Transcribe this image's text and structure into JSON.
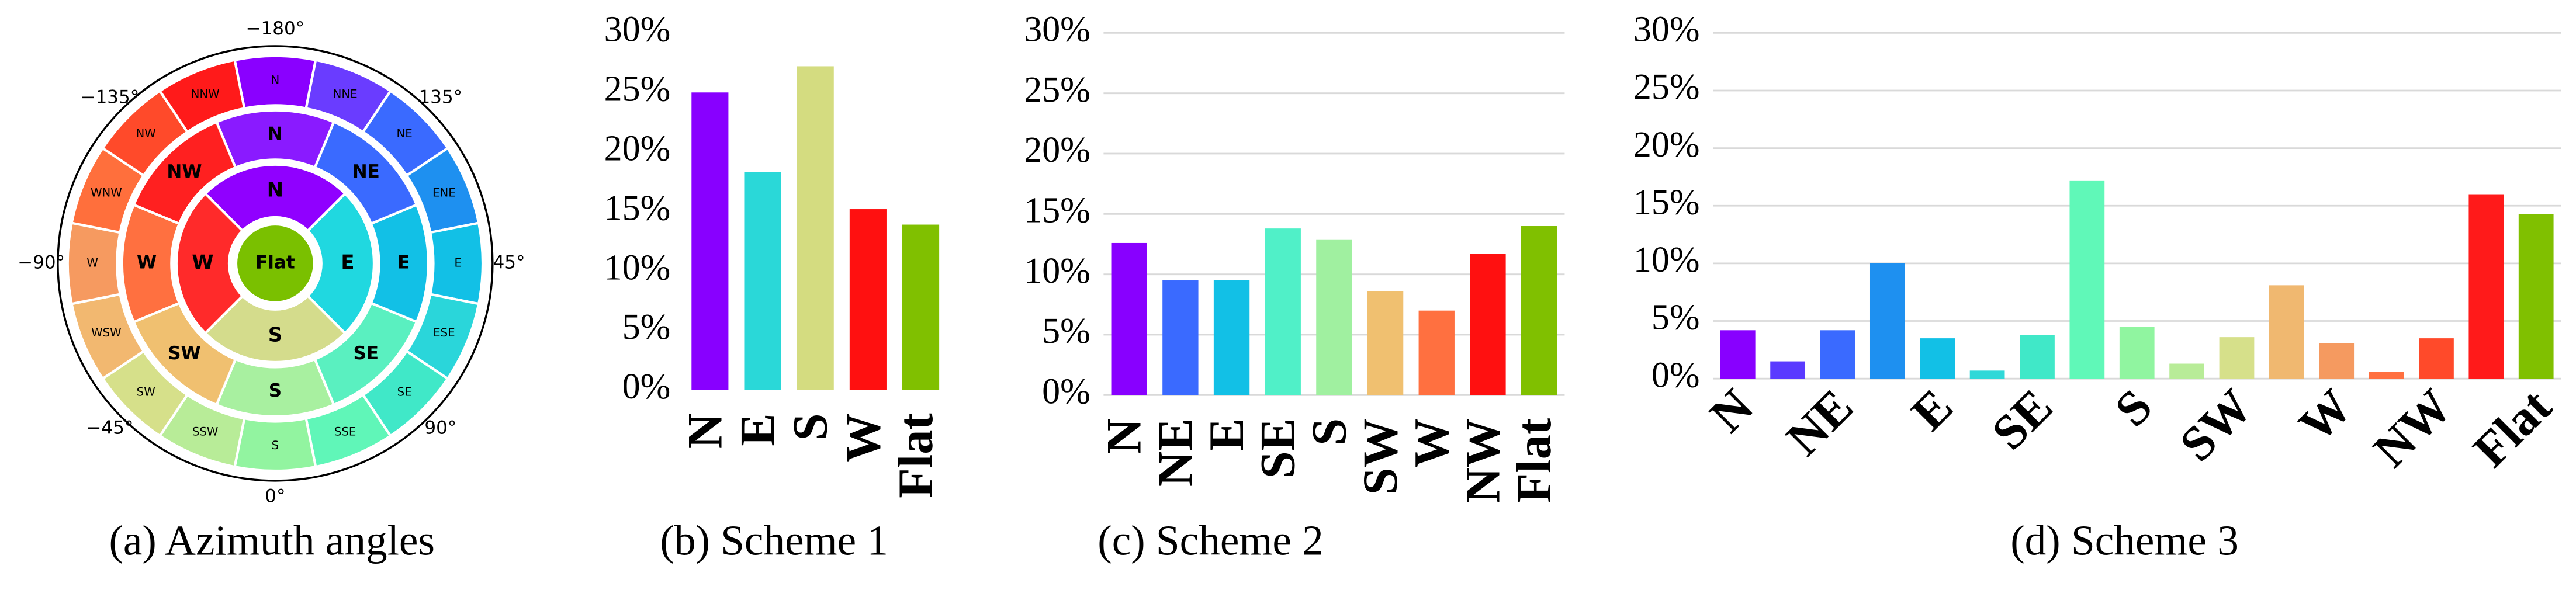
{
  "diagram": {
    "outer": [
      {
        "label": "N",
        "color": "#8a00ff"
      },
      {
        "label": "NNE",
        "color": "#6a3cff"
      },
      {
        "label": "NE",
        "color": "#3a6aff"
      },
      {
        "label": "ENE",
        "color": "#1e90f0"
      },
      {
        "label": "E",
        "color": "#12c0e6"
      },
      {
        "label": "ESE",
        "color": "#2ad6da"
      },
      {
        "label": "SE",
        "color": "#40e8c8"
      },
      {
        "label": "SSE",
        "color": "#60f6b8"
      },
      {
        "label": "S",
        "color": "#92f4a0"
      },
      {
        "label": "SSW",
        "color": "#b8ec98"
      },
      {
        "label": "SW",
        "color": "#d6e08a"
      },
      {
        "label": "WSW",
        "color": "#f2b870"
      },
      {
        "label": "W",
        "color": "#f69a60"
      },
      {
        "label": "WNW",
        "color": "#ff6f3c"
      },
      {
        "label": "NW",
        "color": "#ff4a2a"
      },
      {
        "label": "NNW",
        "color": "#ff1a1a"
      }
    ],
    "middle": [
      {
        "label": "N",
        "color": "#8a1aff"
      },
      {
        "label": "NE",
        "color": "#3a6aff"
      },
      {
        "label": "E",
        "color": "#12c0e6"
      },
      {
        "label": "SE",
        "color": "#5af0c0"
      },
      {
        "label": "S",
        "color": "#a8f0a0"
      },
      {
        "label": "SW",
        "color": "#f0c070"
      },
      {
        "label": "W",
        "color": "#ff7040"
      },
      {
        "label": "NW",
        "color": "#ff2020"
      }
    ],
    "inner": [
      {
        "label": "N",
        "color": "#9000ff"
      },
      {
        "label": "E",
        "color": "#20d8e0"
      },
      {
        "label": "S",
        "color": "#d4dc8c"
      },
      {
        "label": "W",
        "color": "#ff2a2a"
      }
    ],
    "center": {
      "label": "Flat",
      "color": "#7ac000"
    },
    "angle_labels": [
      "−180°",
      "135°",
      "45°",
      "90°",
      "0°",
      "−45°",
      "−90°",
      "−135°"
    ],
    "caption": "(a) Azimuth angles"
  },
  "chart_data": [
    {
      "type": "bar",
      "caption": "(b) Scheme 1",
      "categories": [
        "N",
        "E",
        "S",
        "W",
        "Flat"
      ],
      "values": [
        25,
        18.3,
        27.2,
        15.2,
        13.9
      ],
      "colors": [
        "#8800ff",
        "#2ad8d8",
        "#d4dc80",
        "#ff1010",
        "#80c000"
      ],
      "ylim": [
        0,
        30
      ],
      "yticks": [
        {
          "value": 0,
          "label": "0%"
        },
        {
          "value": 5,
          "label": "5%"
        },
        {
          "value": 10,
          "label": "10%"
        },
        {
          "value": 15,
          "label": "15%"
        },
        {
          "value": 20,
          "label": "20%"
        },
        {
          "value": 25,
          "label": "25%"
        },
        {
          "value": 30,
          "label": "30%"
        }
      ],
      "grid": false
    },
    {
      "type": "bar",
      "caption": "(c) Scheme 2",
      "categories": [
        "N",
        "NE",
        "E",
        "SE",
        "S",
        "SW",
        "W",
        "NW",
        "Flat"
      ],
      "values": [
        12.6,
        9.5,
        9.5,
        13.8,
        12.9,
        8.6,
        7.0,
        11.7,
        14.0
      ],
      "colors": [
        "#8800ff",
        "#3a6aff",
        "#12c0e6",
        "#50f0c8",
        "#a0f0a0",
        "#f0c070",
        "#ff7040",
        "#ff1010",
        "#80c000"
      ],
      "ylim": [
        0,
        30
      ],
      "yticks": [
        {
          "value": 0,
          "label": "0%"
        },
        {
          "value": 5,
          "label": "5%"
        },
        {
          "value": 10,
          "label": "10%"
        },
        {
          "value": 15,
          "label": "15%"
        },
        {
          "value": 20,
          "label": "20%"
        },
        {
          "value": 25,
          "label": "25%"
        },
        {
          "value": 30,
          "label": "30%"
        }
      ],
      "grid": true
    },
    {
      "type": "bar",
      "caption": "(d) Scheme 3",
      "categories": [
        "N",
        null,
        "NE",
        null,
        "E",
        null,
        "SE",
        null,
        "S",
        null,
        "SW",
        null,
        "W",
        null,
        "NW",
        null,
        "Flat"
      ],
      "values": [
        4.2,
        1.5,
        4.2,
        10,
        3.5,
        0.7,
        3.8,
        17.2,
        4.5,
        1.3,
        3.6,
        8.1,
        3.1,
        0.6,
        3.5,
        16,
        14.3
      ],
      "colors": [
        "#8800ff",
        "#5a3aff",
        "#3a6aff",
        "#1e90f0",
        "#12c0e6",
        "#30d8d8",
        "#40e8c8",
        "#60f8b8",
        "#90f5a0",
        "#b8ec98",
        "#d6e08a",
        "#f0b870",
        "#f59a60",
        "#ff7040",
        "#ff4a2a",
        "#ff1a1a",
        "#80c000"
      ],
      "ylim": [
        0,
        30
      ],
      "yticks": [
        {
          "value": 0,
          "label": "0%"
        },
        {
          "value": 5,
          "label": "5%"
        },
        {
          "value": 10,
          "label": "10%"
        },
        {
          "value": 15,
          "label": "15%"
        },
        {
          "value": 20,
          "label": "20%"
        },
        {
          "value": 25,
          "label": "25%"
        },
        {
          "value": 30,
          "label": "30%"
        }
      ],
      "grid": true
    }
  ]
}
